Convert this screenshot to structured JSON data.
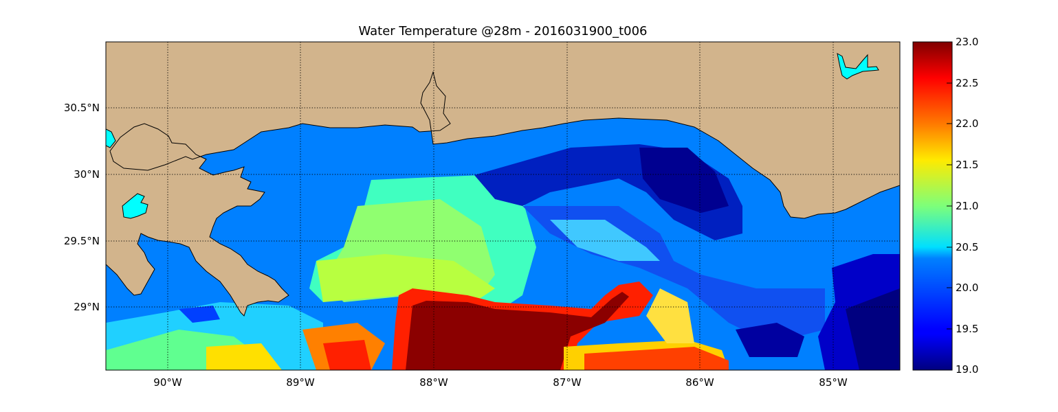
{
  "title": "Water Temperature @28m - 2016031900_t006",
  "map": {
    "lon_range": [
      -90.5,
      -84.5
    ],
    "lat_range": [
      28.55,
      31.02
    ],
    "x_ticks": [
      {
        "lon": -90,
        "label": "90°W"
      },
      {
        "lon": -89,
        "label": "89°W"
      },
      {
        "lon": -88,
        "label": "88°W"
      },
      {
        "lon": -87,
        "label": "87°W"
      },
      {
        "lon": -86,
        "label": "86°W"
      },
      {
        "lon": -85,
        "label": "85°W"
      }
    ],
    "y_ticks": [
      {
        "lat": 30.5,
        "label": "30.5°N"
      },
      {
        "lat": 30.0,
        "label": "30°N"
      },
      {
        "lat": 29.5,
        "label": "29.5°N"
      },
      {
        "lat": 29.0,
        "label": "29°N"
      }
    ],
    "gridlines": "dotted",
    "land_color": "#d2b48c",
    "lake_color": "#00ffff",
    "nodata_ocean_color": "#0080ff"
  },
  "colorbar": {
    "colormap": "jet",
    "min": 19.0,
    "max": 23.0,
    "ticks": [
      "23.0",
      "22.5",
      "22.0",
      "21.5",
      "21.0",
      "20.5",
      "20.0",
      "19.5",
      "19.0"
    ]
  }
}
